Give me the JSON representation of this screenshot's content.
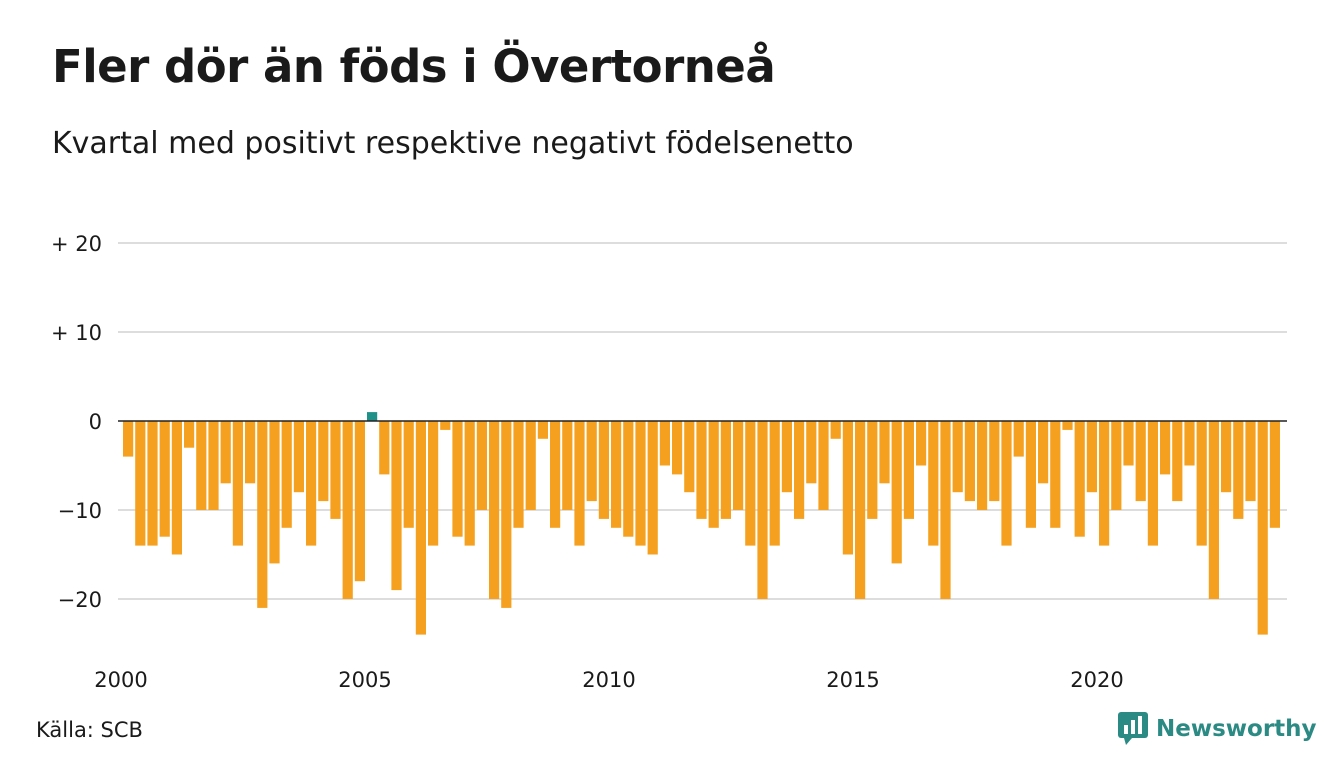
{
  "title": "Fler dör än föds i Övertorneå",
  "subtitle": "Kvartal med positivt respektive negativt födelsenetto",
  "source": "Källa: SCB",
  "brand": "Newsworthy",
  "colors": {
    "negative": "#f5a11f",
    "positive": "#1f9188",
    "grid": "#dddddd",
    "axis": "#222222"
  },
  "chart_data": {
    "type": "bar",
    "ylim": [
      -26,
      22
    ],
    "yticks": [
      20,
      10,
      0,
      -10,
      -20
    ],
    "ytick_labels": [
      "+ 20",
      "+ 10",
      "0",
      "−10",
      "−20"
    ],
    "xticks": [
      2000,
      2005,
      2010,
      2015,
      2020
    ],
    "x_start_year": 2000,
    "grid": true,
    "values": [
      -4,
      -14,
      -14,
      -13,
      -15,
      -3,
      -10,
      -10,
      -7,
      -14,
      -7,
      -21,
      -16,
      -12,
      -8,
      -14,
      -9,
      -11,
      -20,
      -18,
      1,
      -6,
      -19,
      -12,
      -24,
      -14,
      -1,
      -13,
      -14,
      -10,
      -20,
      -21,
      -12,
      -10,
      -2,
      -12,
      -10,
      -14,
      -9,
      -11,
      -12,
      -13,
      -14,
      -15,
      -5,
      -6,
      -8,
      -11,
      -12,
      -11,
      -10,
      -14,
      -20,
      -14,
      -8,
      -11,
      -7,
      -10,
      -2,
      -15,
      -20,
      -11,
      -7,
      -16,
      -11,
      -5,
      -14,
      -20,
      -8,
      -9,
      -10,
      -9,
      -14,
      -4,
      -12,
      -7,
      -12,
      -1,
      -13,
      -8,
      -14,
      -10,
      -5,
      -9,
      -14,
      -6,
      -9,
      -5,
      -14,
      -20,
      -8,
      -11,
      -9,
      -24,
      -12
    ]
  }
}
